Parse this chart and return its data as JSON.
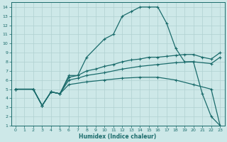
{
  "xlabel": "Humidex (Indice chaleur)",
  "xlim": [
    -0.5,
    23.5
  ],
  "ylim": [
    1,
    14.5
  ],
  "xticks": [
    0,
    1,
    2,
    3,
    4,
    5,
    6,
    7,
    8,
    9,
    10,
    11,
    12,
    13,
    14,
    15,
    16,
    17,
    18,
    19,
    20,
    21,
    22,
    23
  ],
  "yticks": [
    1,
    2,
    3,
    4,
    5,
    6,
    7,
    8,
    9,
    10,
    11,
    12,
    13,
    14
  ],
  "bg_color": "#cde8e8",
  "grid_color": "#b0d0d0",
  "line_color": "#1a6b6b",
  "curve1_x": [
    0,
    2,
    3,
    4,
    5,
    6,
    7,
    8,
    10,
    11,
    12,
    13,
    14,
    15,
    16,
    17,
    18,
    19,
    20,
    21,
    22,
    23
  ],
  "curve1_y": [
    5,
    5,
    3.2,
    4.7,
    4.5,
    6.5,
    6.5,
    8.5,
    10.5,
    11.0,
    13.0,
    13.5,
    14.0,
    14.0,
    14.0,
    12.2,
    9.5,
    8.0,
    8.0,
    4.5,
    2.0,
    1.0
  ],
  "curve2_x": [
    0,
    2,
    3,
    4,
    5,
    6,
    7,
    8,
    9,
    10,
    11,
    12,
    13,
    14,
    15,
    16,
    17,
    18,
    19,
    20,
    21,
    22,
    23
  ],
  "curve2_y": [
    5,
    5,
    3.2,
    4.7,
    4.5,
    6.3,
    6.5,
    7.0,
    7.2,
    7.5,
    7.7,
    8.0,
    8.2,
    8.3,
    8.5,
    8.5,
    8.6,
    8.7,
    8.8,
    8.8,
    8.5,
    8.3,
    9.0
  ],
  "curve3_x": [
    0,
    2,
    3,
    4,
    5,
    6,
    7,
    8,
    10,
    12,
    14,
    16,
    18,
    20,
    22,
    23
  ],
  "curve3_y": [
    5,
    5,
    3.2,
    4.7,
    4.5,
    6.0,
    6.2,
    6.5,
    6.8,
    7.2,
    7.5,
    7.7,
    7.9,
    8.0,
    7.8,
    8.5
  ],
  "curve4_x": [
    0,
    2,
    3,
    4,
    5,
    6,
    8,
    10,
    12,
    14,
    16,
    18,
    20,
    22,
    23
  ],
  "curve4_y": [
    5,
    5,
    3.2,
    4.7,
    4.5,
    5.5,
    5.8,
    6.0,
    6.2,
    6.3,
    6.3,
    6.0,
    5.5,
    5.0,
    1.0
  ]
}
